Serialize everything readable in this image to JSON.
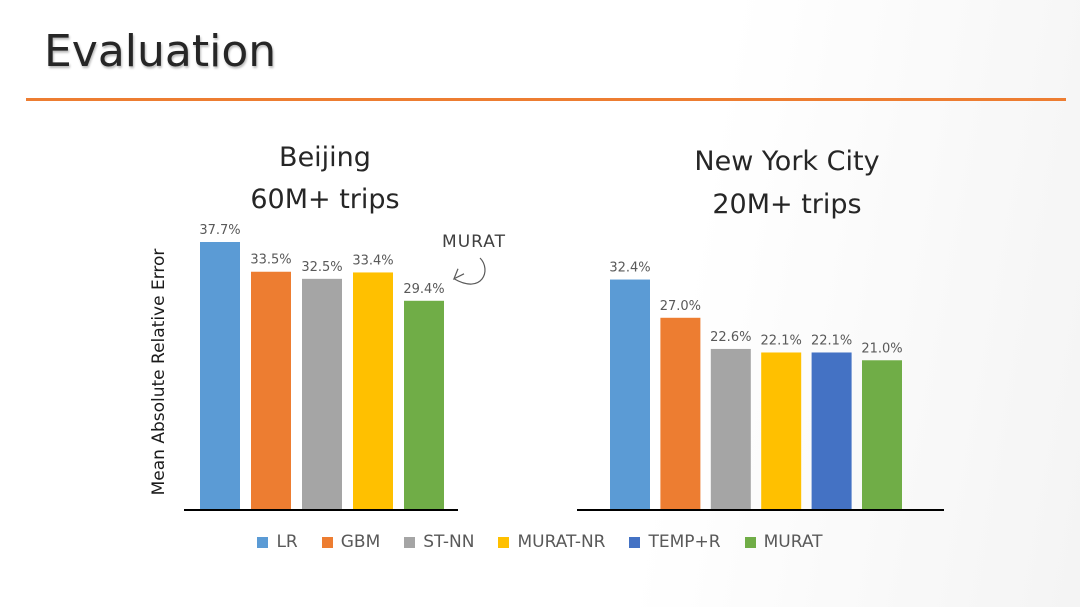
{
  "slide": {
    "title": "Evaluation"
  },
  "colors": {
    "accent_rule": "#ed7d31"
  },
  "chart_data": [
    {
      "type": "bar",
      "title_lines": [
        "Beijing",
        "60M+ trips"
      ],
      "ylabel": "Mean Absolute Relative Error",
      "ylim": [
        0,
        40
      ],
      "series": [
        {
          "name": "LR",
          "values": [
            37.7
          ]
        },
        {
          "name": "GBM",
          "values": [
            33.5
          ]
        },
        {
          "name": "ST-NN",
          "values": [
            32.5
          ]
        },
        {
          "name": "MURAT-NR",
          "values": [
            33.4
          ]
        },
        {
          "name": "MURAT",
          "values": [
            29.4
          ]
        }
      ],
      "value_labels": [
        "37.7%",
        "33.5%",
        "32.5%",
        "33.4%",
        "29.4%"
      ],
      "annotation": {
        "text": "MURAT",
        "target_series": "MURAT"
      }
    },
    {
      "type": "bar",
      "title_lines": [
        "New York City",
        "20M+ trips"
      ],
      "ylim": [
        0,
        40
      ],
      "series": [
        {
          "name": "LR",
          "values": [
            32.4
          ]
        },
        {
          "name": "GBM",
          "values": [
            27.0
          ]
        },
        {
          "name": "ST-NN",
          "values": [
            22.6
          ]
        },
        {
          "name": "MURAT-NR",
          "values": [
            22.1
          ]
        },
        {
          "name": "TEMP+R",
          "values": [
            22.1
          ]
        },
        {
          "name": "MURAT",
          "values": [
            21.0
          ]
        }
      ],
      "value_labels": [
        "32.4%",
        "27.0%",
        "22.6%",
        "22.1%",
        "22.1%",
        "21.0%"
      ]
    }
  ],
  "legend": {
    "placement": "bottom-center",
    "items": [
      {
        "label": "LR",
        "color": "#5b9bd5"
      },
      {
        "label": "GBM",
        "color": "#ed7d31"
      },
      {
        "label": "ST-NN",
        "color": "#a5a5a5"
      },
      {
        "label": "MURAT-NR",
        "color": "#ffc000"
      },
      {
        "label": "TEMP+R",
        "color": "#4472c4"
      },
      {
        "label": "MURAT",
        "color": "#70ad47"
      }
    ]
  }
}
